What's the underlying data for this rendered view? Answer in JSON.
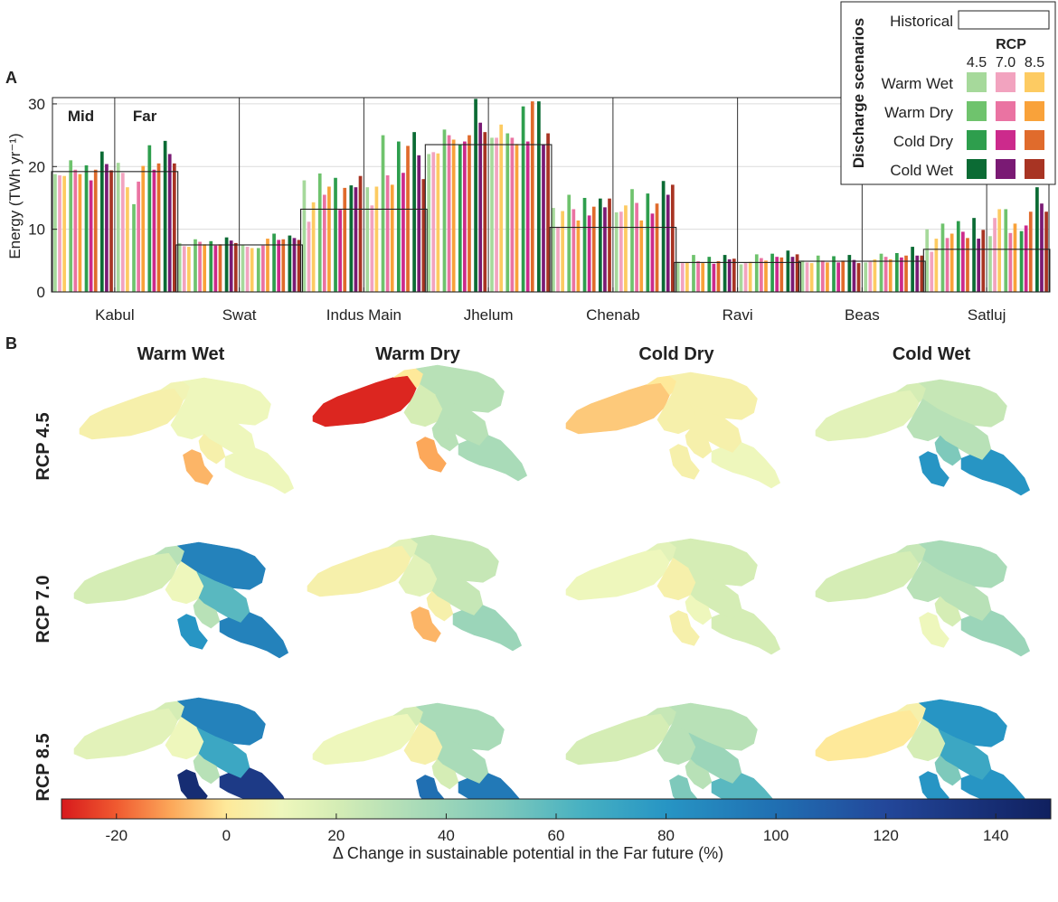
{
  "panel_a": {
    "label": "A",
    "period_labels": [
      "Mid",
      "Far"
    ]
  },
  "panel_b": {
    "label": "B",
    "columns": [
      "Warm Wet",
      "Warm Dry",
      "Cold Dry",
      "Cold Wet"
    ],
    "rows": [
      "RCP 4.5",
      "RCP 7.0",
      "RCP 8.5"
    ],
    "map_regions": [
      "Kabul",
      "Swat",
      "Indus Main",
      "Jhelum",
      "Chenab",
      "Ravi",
      "Beas",
      "Satluj"
    ],
    "far_future_change_percent": [
      [
        [
          5,
          8,
          10,
          10,
          10,
          5,
          -8,
          10
        ],
        [
          -28,
          0,
          30,
          20,
          30,
          30,
          -10,
          35
        ],
        [
          -5,
          0,
          5,
          5,
          5,
          5,
          5,
          10
        ],
        [
          15,
          20,
          25,
          30,
          30,
          50,
          80,
          80
        ]
      ],
      [
        [
          20,
          30,
          90,
          10,
          60,
          30,
          80,
          90
        ],
        [
          5,
          15,
          25,
          15,
          25,
          5,
          -8,
          40
        ],
        [
          10,
          15,
          20,
          5,
          20,
          10,
          5,
          20
        ],
        [
          20,
          25,
          35,
          30,
          30,
          20,
          10,
          40
        ]
      ],
      [
        [
          15,
          20,
          90,
          10,
          70,
          30,
          140,
          130
        ],
        [
          10,
          20,
          35,
          5,
          35,
          20,
          100,
          95
        ],
        [
          20,
          25,
          30,
          30,
          40,
          30,
          50,
          60
        ],
        [
          0,
          5,
          80,
          20,
          70,
          50,
          80,
          80
        ]
      ]
    ]
  },
  "legend": {
    "title": "Discharge scenarios",
    "historical_label": "Historical",
    "rcp_header": "RCP",
    "rcp_values": [
      "4.5",
      "7.0",
      "8.5"
    ],
    "scenarios": [
      {
        "name": "Warm Wet",
        "colors": [
          "#a6d99b",
          "#f2a3bf",
          "#fdcb62"
        ]
      },
      {
        "name": "Warm Dry",
        "colors": [
          "#6fc36d",
          "#ea73a2",
          "#f9a23a"
        ]
      },
      {
        "name": "Cold Dry",
        "colors": [
          "#2e9e4d",
          "#cc2a8c",
          "#e06b2c"
        ]
      },
      {
        "name": "Cold Wet",
        "colors": [
          "#0b6b34",
          "#7a1a74",
          "#a83423"
        ]
      }
    ]
  },
  "colorbar": {
    "min": -30,
    "max": 150,
    "ticks": [
      -20,
      0,
      20,
      40,
      60,
      80,
      100,
      120,
      140
    ],
    "tick_labels": [
      "-20",
      "0",
      "20",
      "40",
      "60",
      "80",
      "100",
      "120",
      "140"
    ],
    "label": "Δ Change in sustainable potential in the Far future (%)",
    "stops": [
      [
        -30,
        "#d7191c"
      ],
      [
        -20,
        "#f05a30"
      ],
      [
        -10,
        "#fca85a"
      ],
      [
        0,
        "#fee99a"
      ],
      [
        10,
        "#eef7bc"
      ],
      [
        20,
        "#d5edb5"
      ],
      [
        35,
        "#a9dbb8"
      ],
      [
        50,
        "#7ec9bb"
      ],
      [
        65,
        "#46b0c2"
      ],
      [
        80,
        "#2795c4"
      ],
      [
        100,
        "#206fb2"
      ],
      [
        120,
        "#23479a"
      ],
      [
        150,
        "#10205f"
      ]
    ]
  },
  "chart_data": {
    "type": "bar",
    "title": "",
    "xlabel": "",
    "ylabel": "Energy (TWh yr⁻¹)",
    "ylim": [
      0,
      31
    ],
    "yticks": [
      0,
      10,
      20,
      30
    ],
    "grid": true,
    "categories": [
      "Kabul",
      "Swat",
      "Indus Main",
      "Jhelum",
      "Chenab",
      "Ravi",
      "Beas",
      "Satluj"
    ],
    "historical": [
      19.2,
      7.5,
      13.2,
      23.5,
      10.3,
      4.7,
      4.9,
      6.8
    ],
    "series_order": "for each period (Mid, Far) and each scenario (Warm Wet, Warm Dry, Cold Dry, Cold Wet), three bars for RCP 4.5, 7.0, 8.5",
    "values": {
      "Kabul": {
        "Mid": [
          [
            18.8,
            18.6,
            18.5
          ],
          [
            21.0,
            19.5,
            18.8
          ],
          [
            20.2,
            17.8,
            19.5
          ],
          [
            22.4,
            20.4,
            19.4
          ]
        ],
        "Far": [
          [
            20.6,
            19.0,
            16.7
          ],
          [
            14.0,
            17.6,
            20.1
          ],
          [
            23.4,
            19.5,
            20.5
          ],
          [
            24.1,
            22.0,
            20.5
          ]
        ]
      },
      "Swat": {
        "Mid": [
          [
            7.8,
            7.3,
            7.2
          ],
          [
            8.4,
            8.0,
            7.6
          ],
          [
            8.1,
            7.4,
            7.6
          ],
          [
            8.7,
            8.2,
            7.8
          ]
        ],
        "Far": [
          [
            7.5,
            7.2,
            7.0
          ],
          [
            7.0,
            7.4,
            8.5
          ],
          [
            9.3,
            8.3,
            8.4
          ],
          [
            9.0,
            8.6,
            8.3
          ]
        ]
      },
      "Indus Main": {
        "Mid": [
          [
            17.8,
            11.2,
            14.3
          ],
          [
            18.9,
            15.5,
            16.8
          ],
          [
            18.2,
            13.1,
            16.6
          ],
          [
            17.0,
            16.7,
            18.5
          ]
        ],
        "Far": [
          [
            16.7,
            13.8,
            16.8
          ],
          [
            25.0,
            18.6,
            17.1
          ],
          [
            24.0,
            19.0,
            23.3
          ],
          [
            25.5,
            21.8,
            18.0
          ]
        ]
      },
      "Jhelum": {
        "Mid": [
          [
            22.0,
            22.3,
            22.1
          ],
          [
            25.9,
            25.0,
            24.3
          ],
          [
            23.5,
            24.0,
            25.0
          ],
          [
            30.8,
            27.0,
            25.5
          ]
        ],
        "Far": [
          [
            24.6,
            24.6,
            26.7
          ],
          [
            25.3,
            24.6,
            23.6
          ],
          [
            29.6,
            24.0,
            30.4
          ],
          [
            30.4,
            23.5,
            25.3
          ]
        ]
      },
      "Chenab": {
        "Mid": [
          [
            13.4,
            10.4,
            12.9
          ],
          [
            15.5,
            13.2,
            11.4
          ],
          [
            15.0,
            12.2,
            13.6
          ],
          [
            14.9,
            13.5,
            14.9
          ]
        ],
        "Far": [
          [
            12.7,
            12.8,
            13.8
          ],
          [
            16.4,
            14.2,
            11.4
          ],
          [
            15.7,
            12.5,
            14.1
          ],
          [
            17.7,
            15.5,
            17.1
          ]
        ]
      },
      "Ravi": {
        "Mid": [
          [
            4.8,
            4.6,
            4.7
          ],
          [
            5.9,
            4.9,
            4.6
          ],
          [
            5.6,
            4.5,
            4.9
          ],
          [
            5.9,
            5.2,
            5.3
          ]
        ],
        "Far": [
          [
            4.4,
            4.6,
            4.8
          ],
          [
            6.0,
            5.4,
            5.0
          ],
          [
            6.1,
            5.6,
            5.5
          ],
          [
            6.6,
            5.6,
            6.0
          ]
        ]
      },
      "Beas": {
        "Mid": [
          [
            5.0,
            4.7,
            4.6
          ],
          [
            5.8,
            5.0,
            4.7
          ],
          [
            5.7,
            4.7,
            5.0
          ],
          [
            5.9,
            5.1,
            4.6
          ]
        ],
        "Far": [
          [
            4.7,
            4.8,
            5.2
          ],
          [
            6.1,
            5.6,
            5.2
          ],
          [
            6.2,
            5.5,
            5.8
          ],
          [
            7.2,
            5.8,
            5.8
          ]
        ]
      },
      "Satluj": {
        "Mid": [
          [
            10.0,
            6.4,
            8.5
          ],
          [
            10.9,
            8.6,
            9.3
          ],
          [
            11.3,
            9.6,
            8.6
          ],
          [
            11.8,
            8.5,
            9.9
          ]
        ],
        "Far": [
          [
            8.9,
            11.8,
            13.2
          ],
          [
            13.2,
            9.4,
            10.9
          ],
          [
            9.7,
            10.6,
            12.8
          ],
          [
            16.7,
            14.1,
            12.8
          ]
        ]
      }
    }
  }
}
